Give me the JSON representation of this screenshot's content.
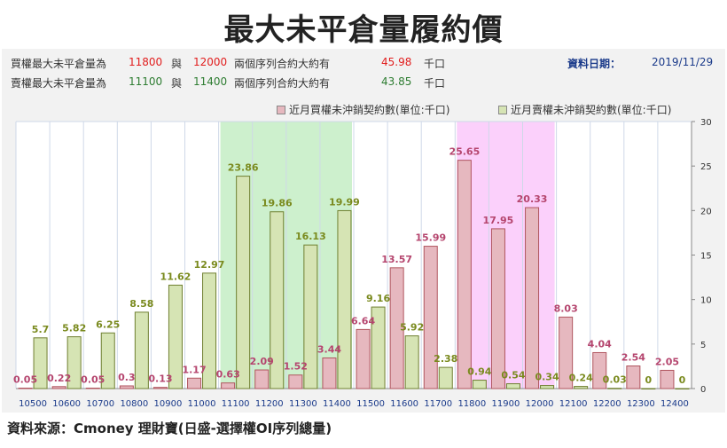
{
  "title": "最大未平倉量履約價",
  "info": {
    "row1": {
      "label": "買權最大未平倉量為",
      "v1": "11800",
      "sep": "與",
      "v2": "12000",
      "mid": "兩個序列合約大約有",
      "amount": "45.98",
      "unit": "千口"
    },
    "row2": {
      "label": "賣權最大未平倉量為",
      "v1": "11100",
      "sep": "與",
      "v2": "11400",
      "mid": "兩個序列合約大約有",
      "amount": "43.85",
      "unit": "千口"
    },
    "date_label": "資料日期：",
    "date": "2019/11/29"
  },
  "legend": {
    "call": "近月買權未沖銷契約數(單位:千口)",
    "put": "近月賣權未沖銷契約數(單位:千口)"
  },
  "source": "資料來源：Cmoney 理財寶(日盛-選擇權OI序列總量)",
  "colors": {
    "call_fill": "#e6b8bf",
    "call_stroke": "#b0555f",
    "put_fill": "#d6e4b4",
    "put_stroke": "#6f7f30",
    "call_highlight": "#fbd0fb",
    "put_highlight": "#cdf0cd"
  },
  "chart_data": {
    "type": "bar",
    "categories": [
      "10500",
      "10600",
      "10700",
      "10800",
      "10900",
      "11000",
      "11100",
      "11200",
      "11300",
      "11400",
      "11500",
      "11600",
      "11700",
      "11800",
      "11900",
      "12000",
      "12100",
      "12200",
      "12300",
      "12400"
    ],
    "series": [
      {
        "name": "近月買權未沖銷契約數(單位:千口)",
        "values": [
          0.05,
          0.22,
          0.05,
          0.3,
          0.13,
          1.17,
          0.63,
          2.09,
          1.52,
          3.44,
          6.64,
          13.57,
          15.99,
          25.65,
          17.95,
          20.33,
          8.03,
          4.04,
          2.54,
          2.05
        ]
      },
      {
        "name": "近月賣權未沖銷契約數(單位:千口)",
        "values": [
          5.7,
          5.82,
          6.25,
          8.58,
          11.62,
          12.97,
          23.86,
          19.86,
          16.13,
          19.99,
          9.16,
          5.92,
          2.38,
          0.94,
          0.54,
          0.34,
          0.24,
          0.03,
          0,
          0
        ]
      }
    ],
    "ylim": [
      0,
      30
    ],
    "yticks": [
      0,
      5,
      10,
      15,
      20,
      25,
      30
    ],
    "y_axis_position": "right",
    "grid": true,
    "highlight_put_range": [
      "11100",
      "11400"
    ],
    "highlight_call_range": [
      "11800",
      "12000"
    ]
  }
}
